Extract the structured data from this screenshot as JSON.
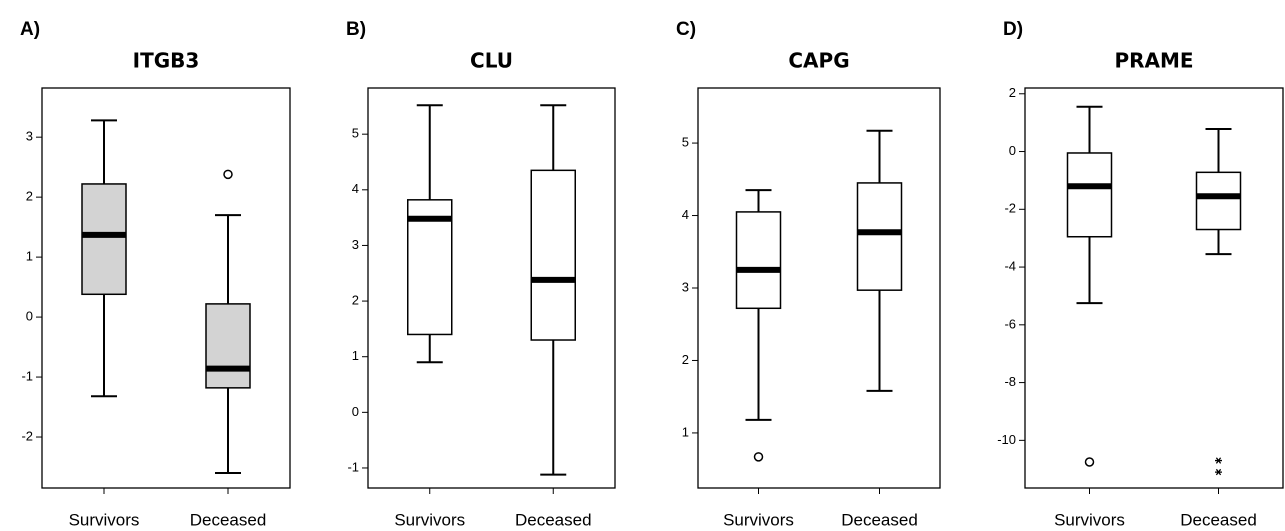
{
  "chart_data": [
    {
      "type": "box",
      "label": "A)",
      "title": "ITGB3",
      "categories": [
        "Survivors",
        "Deceased"
      ],
      "fill": "#d3d3d3",
      "ylim": [
        -2.85,
        3.82
      ],
      "yticks": [
        -2,
        -1,
        0,
        1,
        2,
        3
      ],
      "boxes": [
        {
          "min": -1.32,
          "q1": 0.38,
          "median": 1.37,
          "q3": 2.22,
          "max": 3.28
        },
        {
          "min": -2.6,
          "q1": -1.18,
          "median": -0.86,
          "q3": 0.22,
          "max": 1.7,
          "outliers": [
            2.38
          ]
        }
      ]
    },
    {
      "type": "box",
      "label": "B)",
      "title": "CLU",
      "categories": [
        "Survivors",
        "Deceased"
      ],
      "fill": "#ffffff",
      "ylim": [
        -1.36,
        5.83
      ],
      "yticks": [
        -1,
        0,
        1,
        2,
        3,
        4,
        5
      ],
      "boxes": [
        {
          "min": 0.9,
          "q1": 1.4,
          "median": 3.48,
          "q3": 3.82,
          "max": 5.52
        },
        {
          "min": -1.12,
          "q1": 1.3,
          "median": 2.38,
          "q3": 4.35,
          "max": 5.52
        }
      ]
    },
    {
      "type": "box",
      "label": "C)",
      "title": "CAPG",
      "categories": [
        "Survivors",
        "Deceased"
      ],
      "fill": "#ffffff",
      "ylim": [
        0.24,
        5.76
      ],
      "yticks": [
        1,
        2,
        3,
        4,
        5
      ],
      "boxes": [
        {
          "min": 1.18,
          "q1": 2.72,
          "median": 3.25,
          "q3": 4.05,
          "max": 4.35,
          "outliers": [
            0.67
          ]
        },
        {
          "min": 1.58,
          "q1": 2.97,
          "median": 3.77,
          "q3": 4.45,
          "max": 5.17
        }
      ]
    },
    {
      "type": "box",
      "label": "D)",
      "title": "PRAME",
      "categories": [
        "Survivors",
        "Deceased"
      ],
      "fill": "#ffffff",
      "ylim": [
        -11.65,
        2.2
      ],
      "yticks": [
        -10,
        -8,
        -6,
        -4,
        -2,
        0,
        2
      ],
      "boxes": [
        {
          "min": -5.25,
          "q1": -2.95,
          "median": -1.2,
          "q3": -0.05,
          "max": 1.55,
          "outliers": [
            -10.75
          ]
        },
        {
          "min": -3.55,
          "q1": -2.7,
          "median": -1.55,
          "q3": -0.72,
          "max": 0.78,
          "extremes": [
            -10.7,
            -11.1
          ]
        }
      ]
    }
  ]
}
